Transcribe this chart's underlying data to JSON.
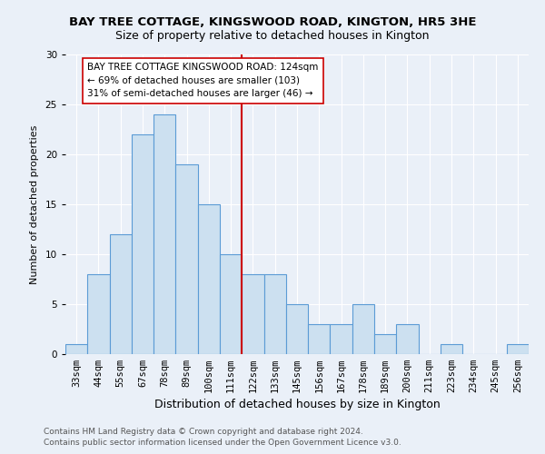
{
  "title": "BAY TREE COTTAGE, KINGSWOOD ROAD, KINGTON, HR5 3HE",
  "subtitle": "Size of property relative to detached houses in Kington",
  "xlabel": "Distribution of detached houses by size in Kington",
  "ylabel": "Number of detached properties",
  "categories": [
    "33sqm",
    "44sqm",
    "55sqm",
    "67sqm",
    "78sqm",
    "89sqm",
    "100sqm",
    "111sqm",
    "122sqm",
    "133sqm",
    "145sqm",
    "156sqm",
    "167sqm",
    "178sqm",
    "189sqm",
    "200sqm",
    "211sqm",
    "223sqm",
    "234sqm",
    "245sqm",
    "256sqm"
  ],
  "values": [
    1,
    8,
    12,
    22,
    24,
    19,
    15,
    10,
    8,
    8,
    5,
    3,
    3,
    5,
    2,
    3,
    0,
    1,
    0,
    0,
    1
  ],
  "bar_color": "#cce0f0",
  "bar_edge_color": "#5b9bd5",
  "vline_x": 7.5,
  "vline_color": "#cc0000",
  "annotation_text": "BAY TREE COTTAGE KINGSWOOD ROAD: 124sqm\n← 69% of detached houses are smaller (103)\n31% of semi-detached houses are larger (46) →",
  "annotation_box_color": "#ffffff",
  "annotation_box_edge_color": "#cc0000",
  "ylim": [
    0,
    30
  ],
  "yticks": [
    0,
    5,
    10,
    15,
    20,
    25,
    30
  ],
  "footer1": "Contains HM Land Registry data © Crown copyright and database right 2024.",
  "footer2": "Contains public sector information licensed under the Open Government Licence v3.0.",
  "bg_color": "#eaf0f8",
  "plot_bg_color": "#eaf0f8",
  "title_fontsize": 9.5,
  "subtitle_fontsize": 9,
  "xlabel_fontsize": 9,
  "ylabel_fontsize": 8,
  "tick_fontsize": 7.5,
  "footer_fontsize": 6.5,
  "ann_fontsize": 7.5
}
